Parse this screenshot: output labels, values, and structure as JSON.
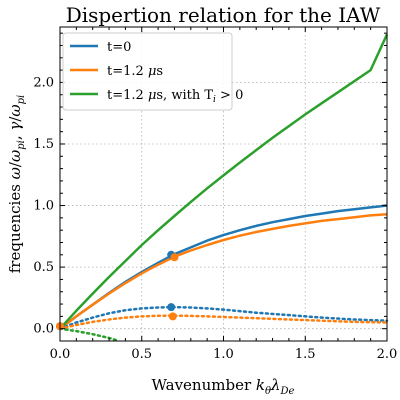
{
  "chart_data": {
    "type": "line",
    "title": "Dispertion relation for the IAW",
    "xlabel": {
      "pre": "Wavenumber ",
      "var": "k",
      "sub1": "θ",
      "var2": "λ",
      "sub2": "De"
    },
    "ylabel": {
      "pre": "frequencies ",
      "v1": "ω",
      "mid1": "/",
      "v2": "ω",
      "s2": "pi",
      "mid2": ", ",
      "v3": "γ",
      "mid3": "/",
      "v4": "ω",
      "s4": "pi"
    },
    "xlim": [
      0.0,
      2.0
    ],
    "ylim": [
      -0.1,
      2.45
    ],
    "xticks": [
      "0.0",
      "0.5",
      "1.0",
      "1.5",
      "2.0"
    ],
    "xtick_values": [
      0,
      0.5,
      1.0,
      1.5,
      2.0
    ],
    "yticks": [
      "0.0",
      "0.5",
      "1.0",
      "1.5",
      "2.0"
    ],
    "ytick_values": [
      0,
      0.5,
      1.0,
      1.5,
      2.0
    ],
    "grid": true,
    "legend_position": "top-left",
    "legend": [
      {
        "label": "t=0",
        "color": "#1f77b4"
      },
      {
        "label_pre": "t=1.2 ",
        "label_mu": "μ",
        "label_post": "s",
        "color": "#ff7f0e"
      },
      {
        "label_pre": "t=1.2 ",
        "label_mu": "μ",
        "label_post": "s, with T",
        "label_sub": "i",
        "label_tail": " > 0",
        "color": "#2ca02c"
      }
    ],
    "series": [
      {
        "style": "solid",
        "color": "#1f77b4",
        "x": [
          0,
          0.1,
          0.2,
          0.3,
          0.4,
          0.5,
          0.6,
          0.7,
          0.8,
          0.9,
          1.0,
          1.1,
          1.2,
          1.3,
          1.4,
          1.5,
          1.6,
          1.7,
          1.8,
          1.9,
          2.0
        ],
        "y": [
          0,
          0.1,
          0.195,
          0.29,
          0.38,
          0.46,
          0.535,
          0.605,
          0.66,
          0.715,
          0.76,
          0.8,
          0.835,
          0.865,
          0.89,
          0.915,
          0.935,
          0.955,
          0.97,
          0.985,
          1.0
        ]
      },
      {
        "style": "solid",
        "color": "#ff7f0e",
        "x": [
          0,
          0.1,
          0.2,
          0.3,
          0.4,
          0.5,
          0.6,
          0.7,
          0.8,
          0.9,
          1.0,
          1.1,
          1.2,
          1.3,
          1.4,
          1.5,
          1.6,
          1.7,
          1.8,
          1.9,
          2.0
        ],
        "y": [
          0,
          0.1,
          0.195,
          0.285,
          0.37,
          0.45,
          0.52,
          0.585,
          0.635,
          0.68,
          0.72,
          0.755,
          0.785,
          0.81,
          0.835,
          0.855,
          0.875,
          0.89,
          0.905,
          0.92,
          0.93
        ]
      },
      {
        "style": "solid",
        "color": "#2ca02c",
        "x": [
          0,
          0.1,
          0.2,
          0.3,
          0.4,
          0.5,
          0.6,
          0.7,
          0.8,
          0.9,
          1.0,
          1.1,
          1.2,
          1.3,
          1.4,
          1.5,
          1.6,
          1.7,
          1.8,
          1.9,
          2.0
        ],
        "y": [
          0,
          0.145,
          0.285,
          0.42,
          0.55,
          0.68,
          0.8,
          0.915,
          1.03,
          1.14,
          1.245,
          1.35,
          1.45,
          1.55,
          1.645,
          1.74,
          1.83,
          1.92,
          2.01,
          2.1,
          2.39
        ]
      },
      {
        "style": "dotted",
        "color": "#1f77b4",
        "x": [
          0,
          0.1,
          0.2,
          0.3,
          0.4,
          0.5,
          0.6,
          0.7,
          0.8,
          0.9,
          1.0,
          1.2,
          1.4,
          1.6,
          1.8,
          2.0
        ],
        "y": [
          0,
          0.05,
          0.09,
          0.125,
          0.15,
          0.165,
          0.172,
          0.175,
          0.172,
          0.165,
          0.155,
          0.13,
          0.11,
          0.09,
          0.075,
          0.065
        ]
      },
      {
        "style": "dotted",
        "color": "#ff7f0e",
        "x": [
          0,
          0.1,
          0.2,
          0.3,
          0.4,
          0.5,
          0.6,
          0.7,
          0.8,
          0.9,
          1.0,
          1.2,
          1.4,
          1.6,
          1.8,
          2.0
        ],
        "y": [
          0,
          0.03,
          0.055,
          0.075,
          0.09,
          0.1,
          0.105,
          0.106,
          0.104,
          0.1,
          0.095,
          0.085,
          0.075,
          0.065,
          0.055,
          0.05
        ]
      },
      {
        "style": "dotted",
        "color": "#2ca02c",
        "x": [
          0,
          0.1,
          0.2,
          0.3,
          0.35
        ],
        "y": [
          0,
          -0.02,
          -0.045,
          -0.075,
          -0.095
        ]
      }
    ],
    "markers": [
      {
        "x": 0.68,
        "y": 0.6,
        "color": "#1f77b4"
      },
      {
        "x": 0.7,
        "y": 0.58,
        "color": "#ff7f0e"
      },
      {
        "x": 0.68,
        "y": 0.175,
        "color": "#1f77b4"
      },
      {
        "x": 0.69,
        "y": 0.1,
        "color": "#ff7f0e"
      },
      {
        "x": 0.0,
        "y": 0.02,
        "color": "#1f77b4"
      },
      {
        "x": 0.0,
        "y": 0.02,
        "color": "#ff7f0e"
      }
    ]
  }
}
